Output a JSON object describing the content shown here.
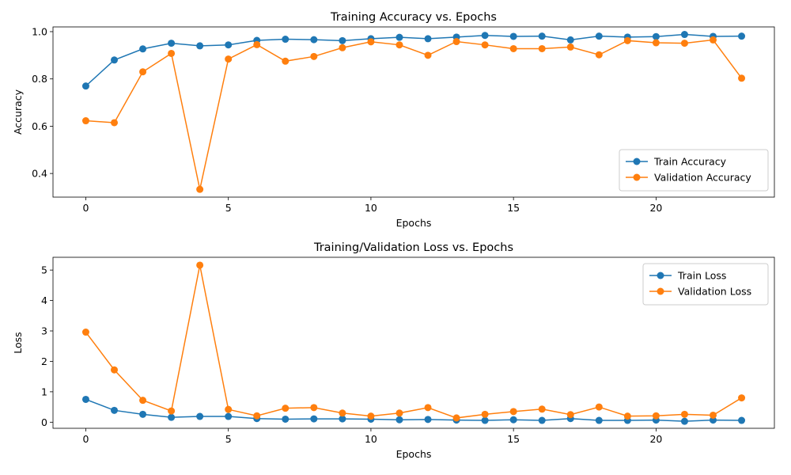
{
  "chart_data": [
    {
      "type": "line",
      "title": "Training Accuracy vs. Epochs",
      "xlabel": "Epochs",
      "ylabel": "Accuracy",
      "xlim": [
        -1.15,
        24.15
      ],
      "ylim": [
        0.3,
        1.02
      ],
      "xticks": [
        0,
        5,
        10,
        15,
        20
      ],
      "yticks": [
        0.4,
        0.6,
        0.8,
        1.0
      ],
      "ytick_format": 1,
      "grid": false,
      "legend_position": "lower right",
      "x": [
        0,
        1,
        2,
        3,
        4,
        5,
        6,
        7,
        8,
        9,
        10,
        11,
        12,
        13,
        14,
        15,
        16,
        17,
        18,
        19,
        20,
        21,
        22,
        23
      ],
      "series": [
        {
          "name": "Train Accuracy",
          "color": "#1f77b4",
          "values": [
            0.77,
            0.88,
            0.927,
            0.951,
            0.94,
            0.944,
            0.963,
            0.968,
            0.966,
            0.962,
            0.97,
            0.976,
            0.97,
            0.977,
            0.984,
            0.98,
            0.981,
            0.965,
            0.981,
            0.977,
            0.979,
            0.988,
            0.98,
            0.981
          ]
        },
        {
          "name": "Validation Accuracy",
          "color": "#ff7f0e",
          "values": [
            0.623,
            0.615,
            0.83,
            0.908,
            0.333,
            0.884,
            0.945,
            0.875,
            0.895,
            0.932,
            0.957,
            0.944,
            0.9,
            0.958,
            0.944,
            0.928,
            0.928,
            0.935,
            0.902,
            0.962,
            0.953,
            0.951,
            0.965,
            0.803
          ]
        }
      ]
    },
    {
      "type": "line",
      "title": "Training/Validation Loss vs. Epochs",
      "xlabel": "Epochs",
      "ylabel": "Loss",
      "xlim": [
        -1.15,
        24.15
      ],
      "ylim": [
        -0.2,
        5.42
      ],
      "xticks": [
        0,
        5,
        10,
        15,
        20
      ],
      "yticks": [
        0,
        1,
        2,
        3,
        4,
        5
      ],
      "ytick_format": 0,
      "grid": false,
      "legend_position": "upper right",
      "x": [
        0,
        1,
        2,
        3,
        4,
        5,
        6,
        7,
        8,
        9,
        10,
        11,
        12,
        13,
        14,
        15,
        16,
        17,
        18,
        19,
        20,
        21,
        22,
        23
      ],
      "series": [
        {
          "name": "Train Loss",
          "color": "#1f77b4",
          "values": [
            0.75,
            0.39,
            0.26,
            0.16,
            0.19,
            0.19,
            0.12,
            0.1,
            0.11,
            0.11,
            0.1,
            0.08,
            0.09,
            0.07,
            0.06,
            0.08,
            0.06,
            0.12,
            0.06,
            0.06,
            0.07,
            0.03,
            0.07,
            0.06
          ]
        },
        {
          "name": "Validation Loss",
          "color": "#ff7f0e",
          "values": [
            2.96,
            1.72,
            0.72,
            0.37,
            5.16,
            0.42,
            0.21,
            0.46,
            0.48,
            0.3,
            0.2,
            0.3,
            0.48,
            0.14,
            0.26,
            0.35,
            0.43,
            0.25,
            0.5,
            0.2,
            0.21,
            0.26,
            0.23,
            0.8
          ]
        }
      ]
    }
  ]
}
